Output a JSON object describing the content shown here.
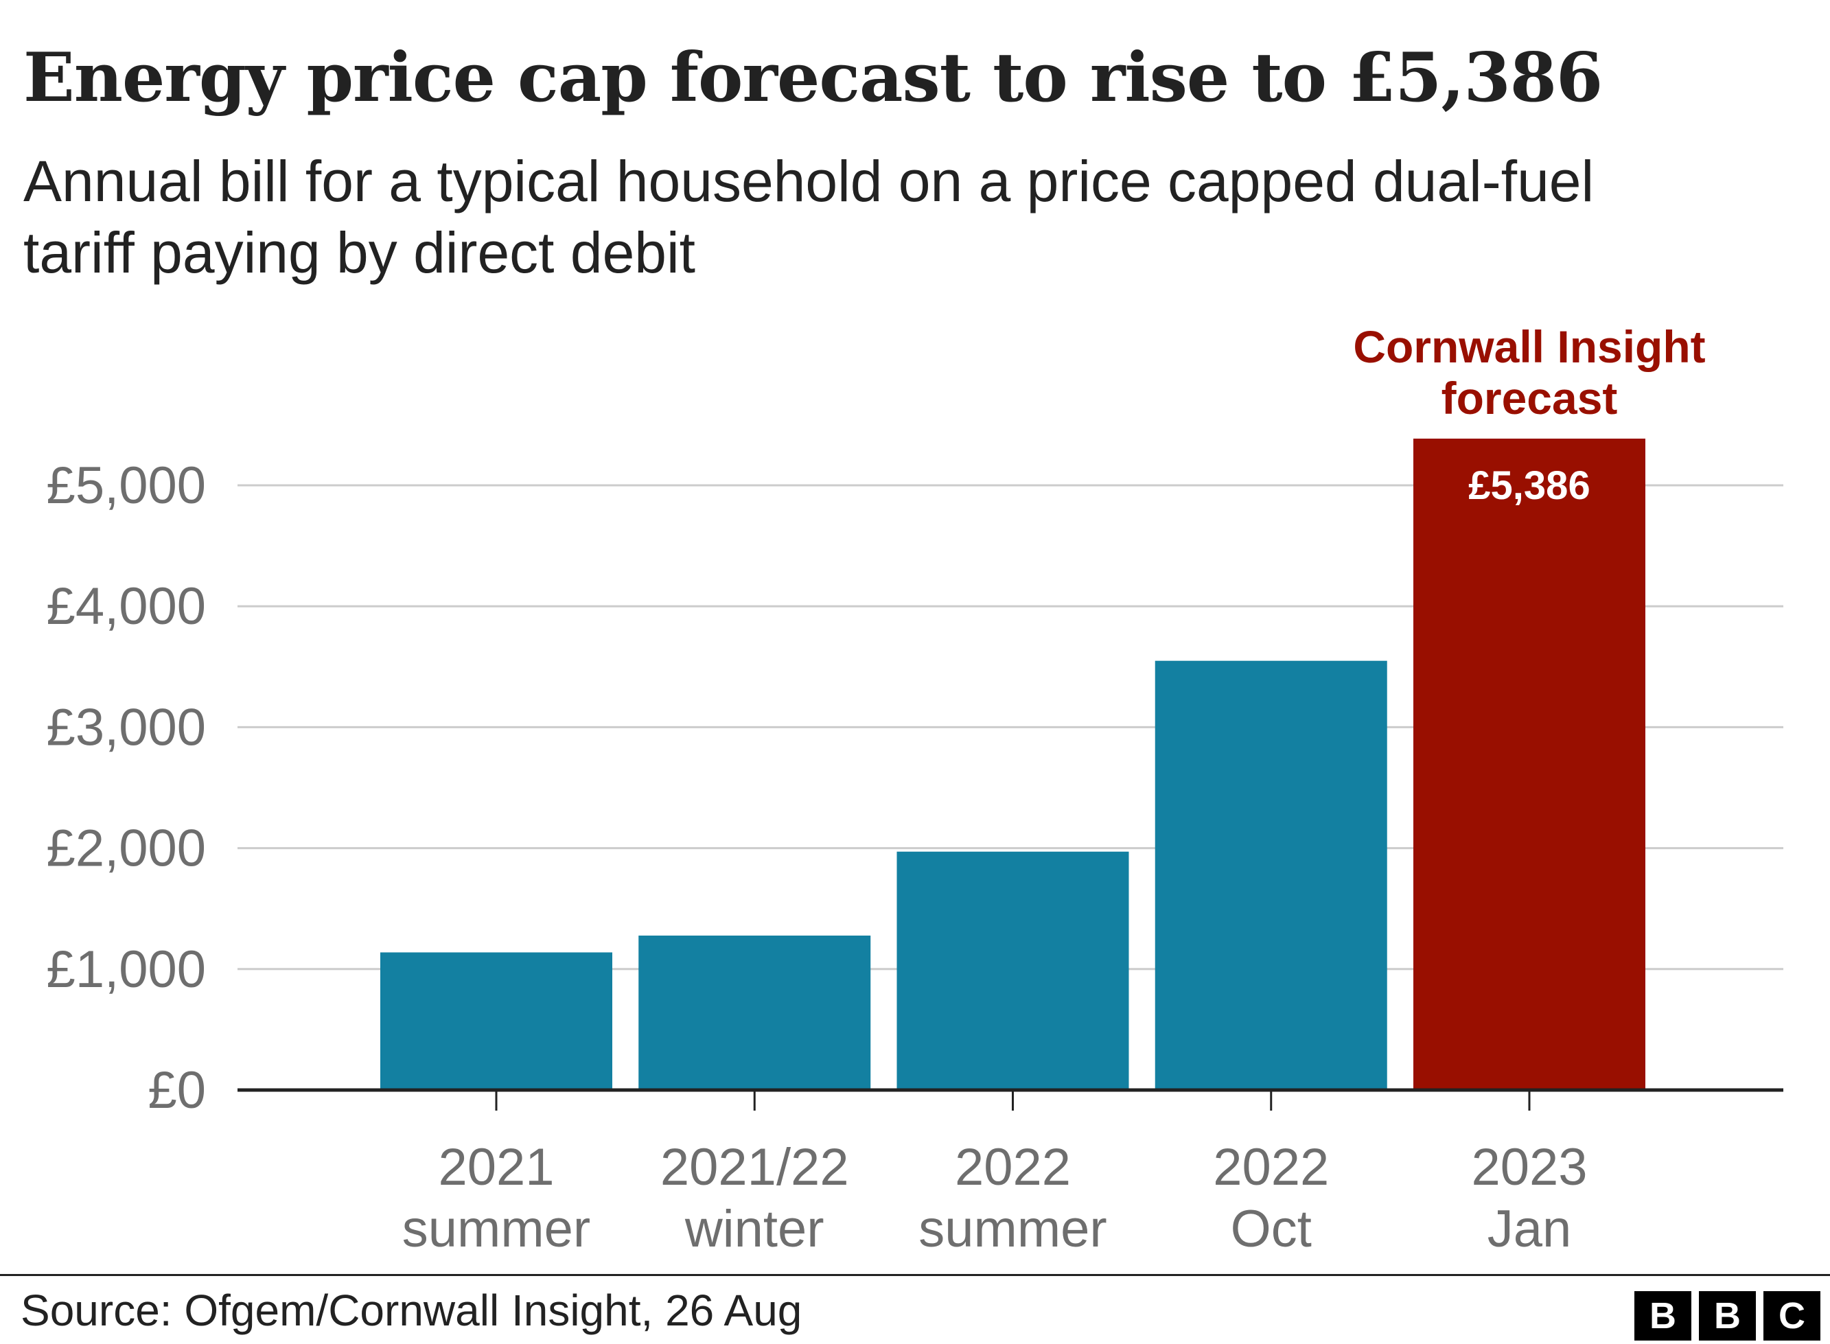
{
  "title": "Energy price cap forecast to rise to £5,386",
  "subtitle": "Annual bill for a typical household on a price capped dual-fuel tariff paying by direct debit",
  "source": "Source: Ofgem/Cornwall Insight, 26 Aug",
  "logo": [
    "B",
    "B",
    "C"
  ],
  "colors": {
    "bar": "#1380A1",
    "forecast_bar": "#990F00",
    "forecast_label": "#990F00",
    "grid": "#cccccc",
    "axis": "#222222",
    "tick_text": "#6e6e6e"
  },
  "chart_data": {
    "type": "bar",
    "categories": [
      [
        "2021",
        "summer"
      ],
      [
        "2021/22",
        "winter"
      ],
      [
        "2022",
        "summer"
      ],
      [
        "2022",
        "Oct"
      ],
      [
        "2023",
        "Jan"
      ]
    ],
    "values": [
      1138,
      1277,
      1971,
      3549,
      5386
    ],
    "forecast_index": 4,
    "value_labels": [
      "",
      "",
      "",
      "",
      "£5,386"
    ],
    "annotation": [
      "Cornwall Insight",
      "forecast"
    ],
    "ylim": [
      0,
      5386
    ],
    "yticks": [
      0,
      1000,
      2000,
      3000,
      4000,
      5000
    ],
    "ytick_labels": [
      "£0",
      "£1,000",
      "£2,000",
      "£3,000",
      "£4,000",
      "£5,000"
    ],
    "grid": true
  }
}
